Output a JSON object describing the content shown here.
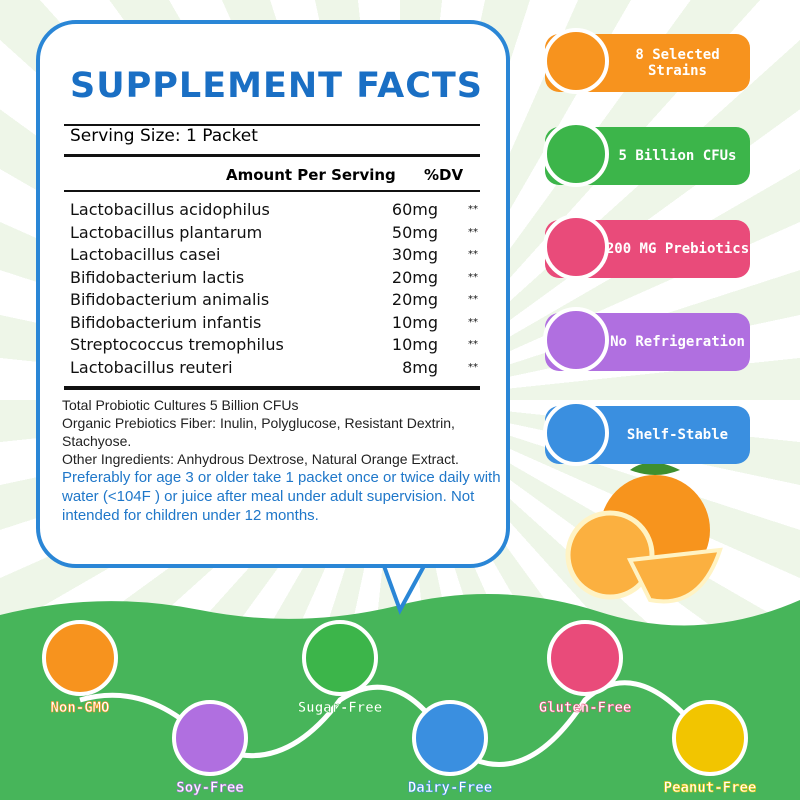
{
  "facts": {
    "title": "SUPPLEMENT FACTS",
    "serving_label": "Serving Size:",
    "serving_value": "1 Packet",
    "col_amount": "Amount Per Serving",
    "col_dv": "%DV",
    "rows": [
      [
        "Lactobacillus acidophilus",
        "60mg",
        "**"
      ],
      [
        "Lactobacillus plantarum",
        "50mg",
        "**"
      ],
      [
        "Lactobacillus casei",
        "30mg",
        "**"
      ],
      [
        "Bifidobacterium lactis",
        "20mg",
        "**"
      ],
      [
        "Bifidobacterium animalis",
        "20mg",
        "**"
      ],
      [
        "Bifidobacterium infantis",
        "10mg",
        "**"
      ],
      [
        "Streptococcus tremophilus",
        "10mg",
        "**"
      ],
      [
        "Lactobacillus reuteri",
        "8mg",
        "**"
      ]
    ],
    "notes": [
      "Total Probiotic Cultures 5 Billion CFUs",
      "Organic Prebiotics Fiber: Inulin, Polyglucose, Resistant Dextrin, Stachyose.",
      "Other Ingredients: Anhydrous Dextrose, Natural Orange Extract."
    ],
    "directions": "Preferably for age 3 or older take 1 packet once or twice daily with water (<104F ) or juice after meal under adult supervision. Not intended for children under 12 months."
  },
  "features": [
    "8 Selected Strains",
    "5 Billion CFUs",
    "200 MG Prebiotics",
    "No Refrigeration",
    "Shelf-Stable"
  ],
  "badges": [
    "Non-GMO",
    "Soy-Free",
    "Sugar-Free",
    "Dairy-Free",
    "Gluten-Free",
    "Peanut-Free"
  ]
}
